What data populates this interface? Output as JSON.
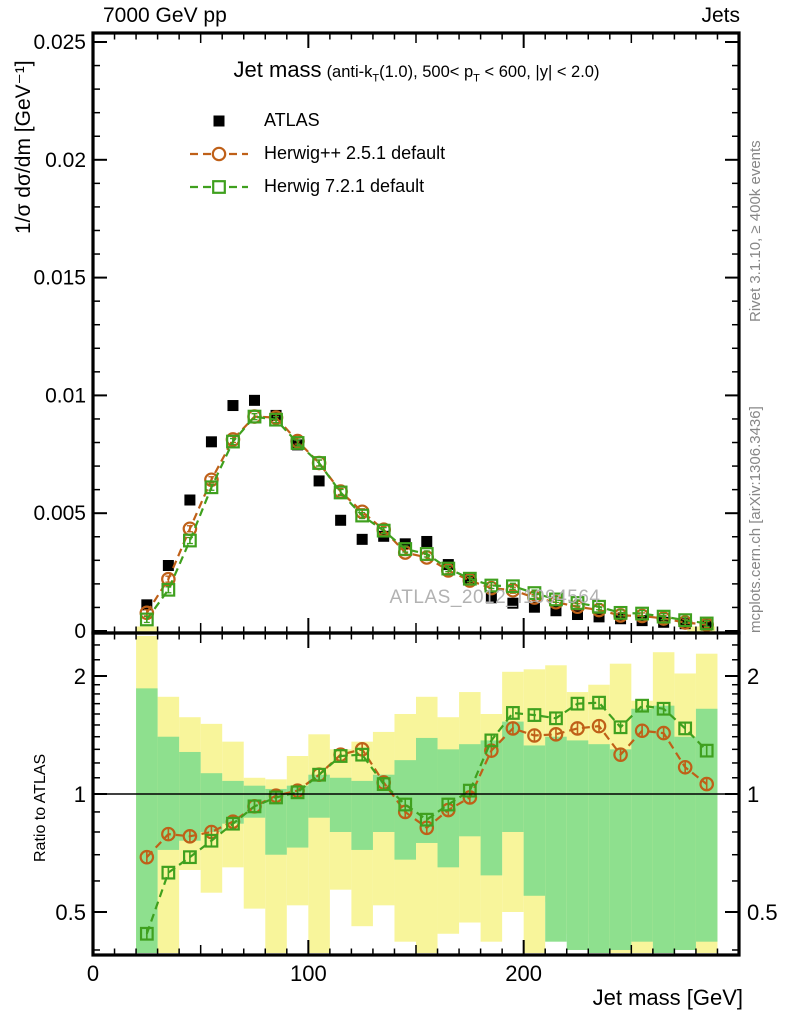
{
  "header": {
    "left": "7000 GeV pp",
    "right": "Jets"
  },
  "title": {
    "main": "Jet mass",
    "detail_parts": [
      "(anti-k",
      "T",
      "(1.0), 500< p",
      "T",
      " < 600, |y| < 2.0)"
    ]
  },
  "watermark": "ATLAS_2012_I1094564",
  "side_notes": {
    "top_right": "Rivet 3.1.10, ≥ 400k events",
    "bottom_right": "mcplots.cern.ch [arXiv:1306.3436]"
  },
  "axes": {
    "x": {
      "label": "Jet mass [GeV]",
      "min": 0,
      "max": 300,
      "major_ticks": [
        0,
        100,
        200
      ],
      "major_tick_labels": [
        "0",
        "100",
        "200"
      ],
      "mid_step": 50,
      "minor_step": 10
    },
    "y_main": {
      "label": "1/σ dσ/dm [GeV⁻¹]",
      "min": 0,
      "max": 0.0253,
      "major_ticks": [
        0,
        0.005,
        0.01,
        0.015,
        0.02,
        0.025
      ],
      "major_tick_labels": [
        "0",
        "0.005",
        "0.01",
        "0.015",
        "0.02",
        "0.025"
      ],
      "minor_step": 0.001
    },
    "y_ratio": {
      "label": "Ratio to ATLAS",
      "scale": "log",
      "min": 0.393,
      "max": 2.53,
      "major_ticks": [
        0.5,
        1,
        2
      ],
      "major_tick_labels": [
        "0.5",
        "1",
        "2"
      ],
      "reference_line": 1
    }
  },
  "legend": [
    {
      "label": "ATLAS",
      "marker": "filled-square",
      "color": "#000000",
      "dashed": false
    },
    {
      "label": "Herwig++ 2.5.1 default",
      "marker": "open-circle",
      "color": "#bf6018",
      "dashed": true
    },
    {
      "label": "Herwig 7.2.1 default",
      "marker": "open-square",
      "color": "#3fa01e",
      "dashed": true
    }
  ],
  "colors": {
    "atlas": "#000000",
    "herwigpp": "#bf6018",
    "herwig7": "#3fa01e",
    "band_yellow": "#f8f59b",
    "band_green": "#8ee08e",
    "frame": "#000000",
    "watermark": "#b2b2b2",
    "side_note": "#878787"
  },
  "chart_data": [
    {
      "type": "line",
      "panel": "main",
      "title": "Jet mass (anti-kT(1.0), 500< pT < 600, |y| < 2.0)",
      "xlabel": "Jet mass [GeV]",
      "ylabel": "1/σ dσ/dm [GeV⁻¹]",
      "xlim": [
        0,
        300
      ],
      "ylim": [
        0,
        0.0253
      ],
      "bin_width": 10,
      "x": [
        25,
        35,
        45,
        55,
        65,
        75,
        85,
        95,
        105,
        115,
        125,
        135,
        145,
        155,
        165,
        175,
        185,
        195,
        205,
        215,
        225,
        235,
        245,
        255,
        265,
        275,
        285
      ],
      "series": [
        {
          "name": "ATLAS",
          "marker": "filled-square",
          "color": "#000000",
          "values": [
            0.00111,
            0.00278,
            0.00556,
            0.00803,
            0.00957,
            0.00979,
            0.00915,
            0.0079,
            0.00637,
            0.0047,
            0.00389,
            0.00402,
            0.0037,
            0.0038,
            0.00282,
            0.00218,
            0.00141,
            0.00118,
            0.00101,
            0.00086,
            0.0007,
            0.0006,
            0.00052,
            0.00044,
            0.00037,
            0.00031,
            0.00025
          ]
        },
        {
          "name": "Herwig++ 2.5.1 default",
          "marker": "open-circle",
          "color": "#bf6018",
          "values": [
            0.00077,
            0.0022,
            0.00434,
            0.00642,
            0.00813,
            0.0091,
            0.00906,
            0.00806,
            0.00713,
            0.00592,
            0.00506,
            0.0043,
            0.00333,
            0.00312,
            0.00257,
            0.00214,
            0.00182,
            0.00173,
            0.00142,
            0.00122,
            0.00103,
            0.00089,
            0.00066,
            0.00064,
            0.00053,
            0.00036,
            0.00027
          ]
        },
        {
          "name": "Herwig 7.2.1 default",
          "marker": "open-square",
          "color": "#3fa01e",
          "values": [
            0.00049,
            0.00175,
            0.00384,
            0.0061,
            0.00804,
            0.0091,
            0.00897,
            0.00798,
            0.00713,
            0.00588,
            0.0049,
            0.00426,
            0.00348,
            0.00327,
            0.00265,
            0.00222,
            0.00193,
            0.0019,
            0.00161,
            0.00134,
            0.00119,
            0.00103,
            0.00077,
            0.00074,
            0.00061,
            0.00046,
            0.00032
          ]
        }
      ],
      "data_band_strips_gev": [
        [
          20,
          30
        ],
        [
          276,
          289
        ]
      ]
    },
    {
      "type": "ratio",
      "panel": "ratio",
      "ylabel": "Ratio to ATLAS",
      "xlim": [
        0,
        300
      ],
      "ylim": [
        0.393,
        2.53
      ],
      "yscale": "log",
      "reference_line": 1,
      "bin_width": 10,
      "x": [
        25,
        35,
        45,
        55,
        65,
        75,
        85,
        95,
        105,
        115,
        125,
        135,
        145,
        155,
        165,
        175,
        185,
        195,
        205,
        215,
        225,
        235,
        245,
        255,
        265,
        275,
        285
      ],
      "series": [
        {
          "name": "Herwig++ 2.5.1 default",
          "marker": "open-circle",
          "color": "#bf6018",
          "values": [
            0.69,
            0.79,
            0.78,
            0.8,
            0.85,
            0.93,
            0.99,
            1.02,
            1.12,
            1.26,
            1.3,
            1.07,
            0.9,
            0.82,
            0.91,
            0.98,
            1.29,
            1.47,
            1.41,
            1.42,
            1.47,
            1.49,
            1.26,
            1.45,
            1.43,
            1.17,
            1.06
          ]
        },
        {
          "name": "Herwig 7.2.1 default",
          "marker": "open-square",
          "color": "#3fa01e",
          "values": [
            0.44,
            0.63,
            0.69,
            0.76,
            0.84,
            0.93,
            0.98,
            1.01,
            1.12,
            1.25,
            1.26,
            1.06,
            0.94,
            0.86,
            0.94,
            1.02,
            1.37,
            1.61,
            1.59,
            1.56,
            1.7,
            1.71,
            1.48,
            1.68,
            1.65,
            1.47,
            1.29
          ]
        }
      ],
      "bands": {
        "yellow_total_uncertainty": {
          "lo": [
            0.38,
            0.39,
            0.64,
            0.56,
            0.65,
            0.51,
            0.39,
            0.52,
            0.39,
            0.57,
            0.46,
            0.52,
            0.42,
            0.39,
            0.44,
            0.47,
            0.42,
            0.5,
            0.39,
            0.53,
            0.44,
            0.41,
            0.39,
            0.385,
            0.38,
            0.4,
            0.385
          ],
          "hi": [
            2.53,
            1.77,
            1.57,
            1.51,
            1.36,
            1.1,
            1.09,
            1.25,
            1.42,
            1.3,
            1.36,
            1.44,
            1.6,
            1.77,
            1.57,
            1.82,
            1.6,
            2.05,
            2.08,
            2.13,
            1.82,
            1.9,
            2.15,
            1.73,
            2.3,
            2.03,
            2.28
          ]
        },
        "green_stat_uncertainty": {
          "lo": [
            0.39,
            0.72,
            0.76,
            0.8,
            0.84,
            0.87,
            0.7,
            0.73,
            0.87,
            0.8,
            0.72,
            0.8,
            0.68,
            0.75,
            0.65,
            0.78,
            0.62,
            0.8,
            0.55,
            0.42,
            0.4,
            0.39,
            0.4,
            0.42,
            0.39,
            0.4,
            0.42
          ],
          "hi": [
            1.86,
            1.4,
            1.28,
            1.13,
            1.08,
            1.05,
            1.03,
            1.05,
            1.12,
            1.1,
            1.08,
            1.12,
            1.22,
            1.39,
            1.3,
            1.34,
            1.37,
            1.53,
            1.33,
            1.4,
            1.37,
            1.34,
            1.3,
            1.65,
            1.68,
            1.4,
            1.65
          ]
        }
      }
    }
  ]
}
